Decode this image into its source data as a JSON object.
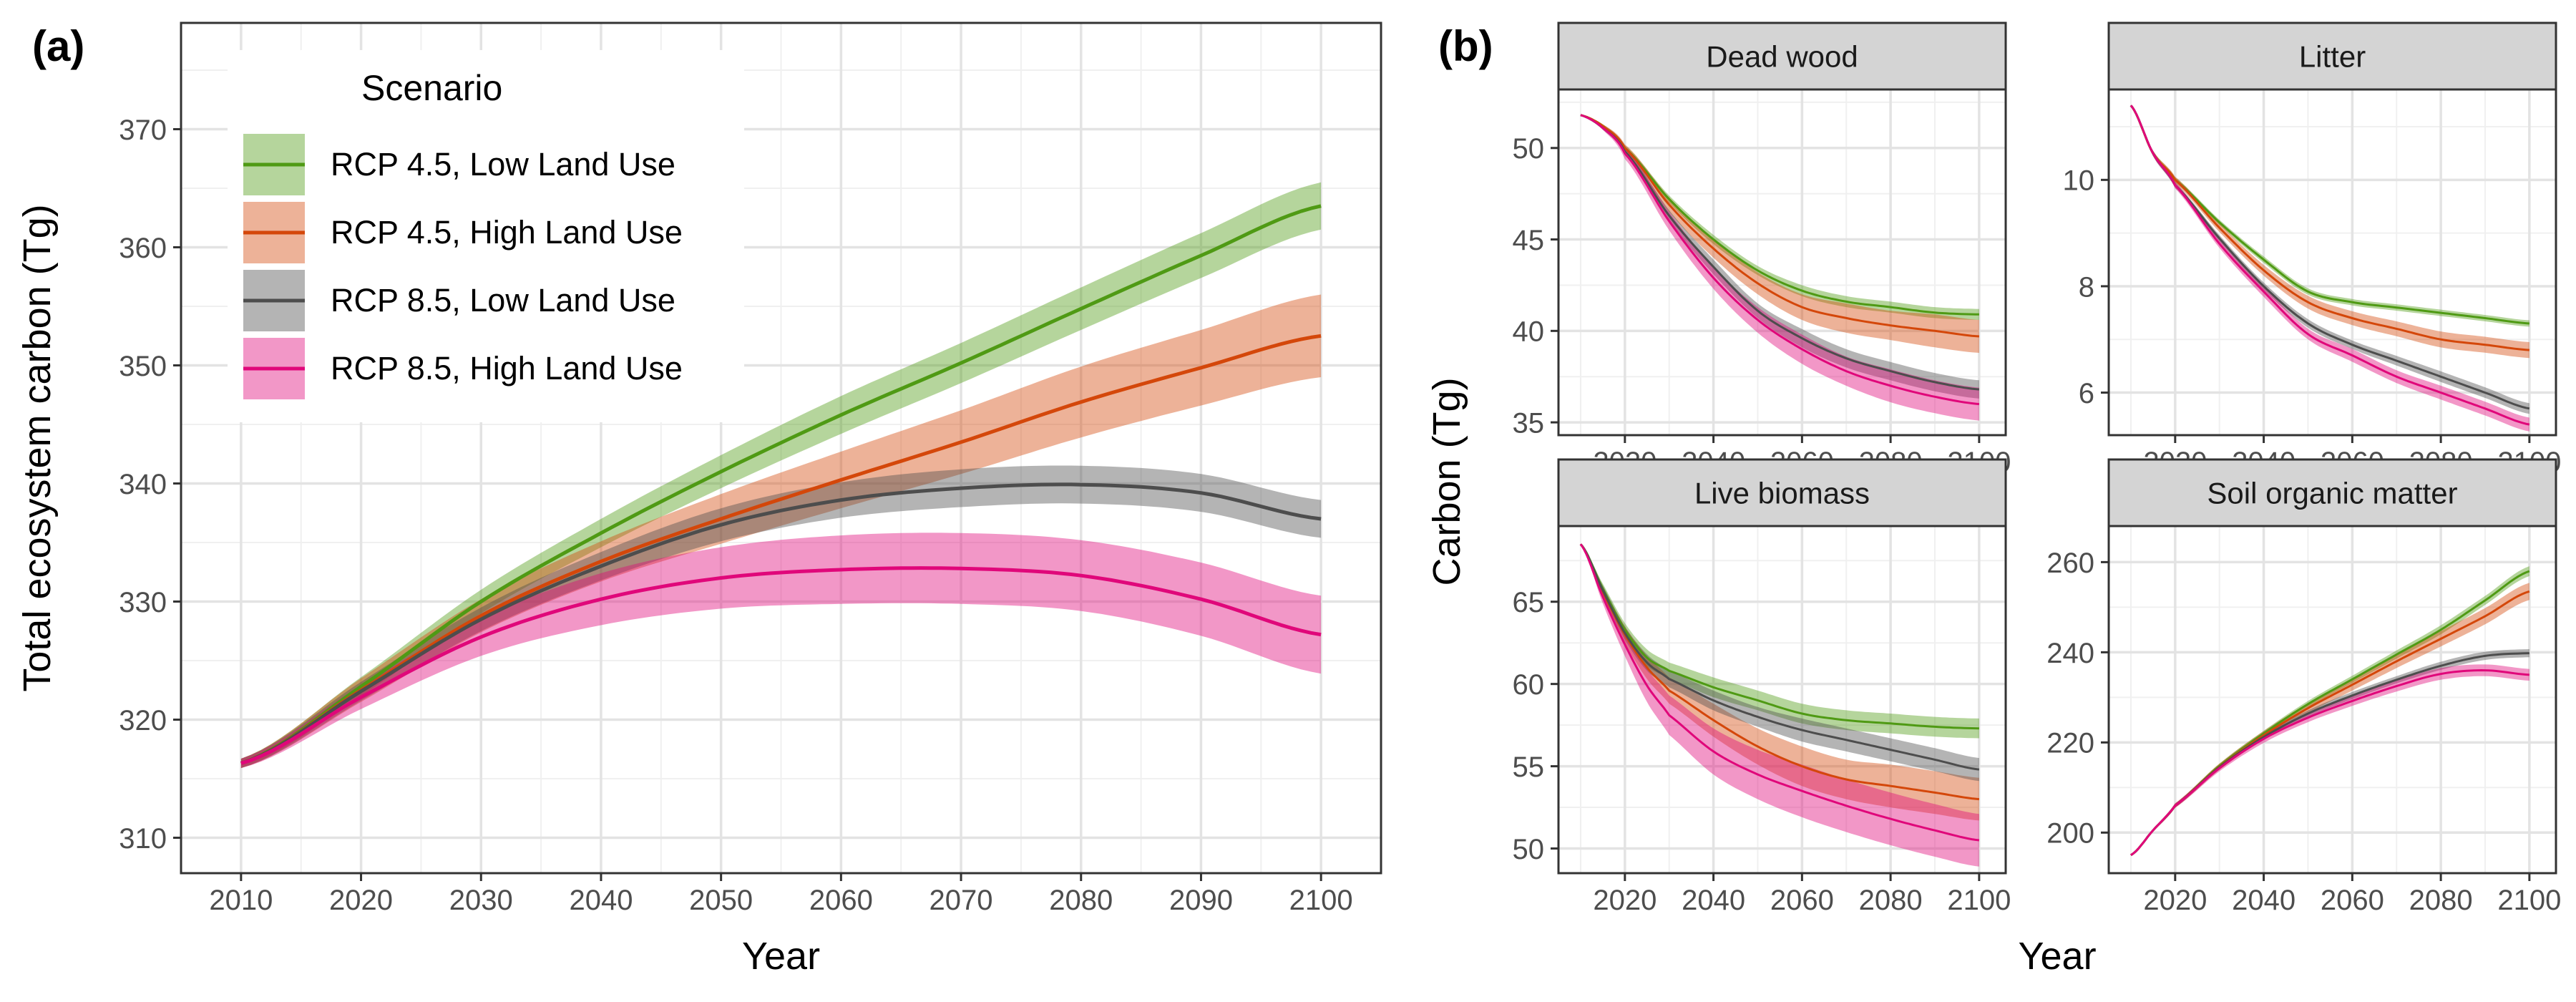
{
  "colors": {
    "rcp45_low": "#4f9a14",
    "rcp45_high": "#d4470a",
    "rcp85_low": "#4d4d4d",
    "rcp85_high": "#e0077a",
    "grid": "#e3e3e3",
    "strip_fill": "#d4d4d4",
    "panel_border": "#333333"
  },
  "chart_data": [
    {
      "type": "line",
      "panel_label": "(a)",
      "xlabel": "Year",
      "ylabel": "Total ecosystem carbon (Tg)",
      "xlim": [
        2005,
        2105
      ],
      "ylim": [
        307,
        379
      ],
      "x_ticks": [
        2010,
        2020,
        2030,
        2040,
        2050,
        2060,
        2070,
        2080,
        2090,
        2100
      ],
      "y_ticks": [
        310,
        320,
        330,
        340,
        350,
        360,
        370
      ],
      "grid": true,
      "bands": "shaded uncertainty ribbon around each series",
      "legend": {
        "title": "Scenario",
        "placement": "top-left",
        "entries": [
          "RCP 4.5, Low Land Use",
          "RCP 4.5, High Land Use",
          "RCP 8.5, Low Land Use",
          "RCP 8.5, High Land Use"
        ]
      },
      "x": [
        2010,
        2020,
        2030,
        2040,
        2050,
        2060,
        2070,
        2080,
        2090,
        2100
      ],
      "series": [
        {
          "name": "RCP 4.5, Low Land Use",
          "color_key": "rcp45_low",
          "values": [
            316.3,
            322.8,
            330.0,
            335.8,
            341.0,
            345.8,
            350.2,
            354.8,
            359.3,
            363.5
          ],
          "band": [
            0.4,
            0.8,
            1.0,
            1.2,
            1.4,
            1.6,
            1.7,
            1.8,
            1.9,
            2.0
          ]
        },
        {
          "name": "RCP 4.5, High Land Use",
          "color_key": "rcp45_high",
          "values": [
            316.3,
            322.5,
            328.8,
            333.4,
            337.0,
            340.3,
            343.5,
            346.9,
            349.8,
            352.5
          ],
          "band": [
            0.4,
            1.0,
            1.4,
            1.7,
            2.1,
            2.4,
            2.7,
            3.0,
            3.2,
            3.5
          ]
        },
        {
          "name": "RCP 8.5, Low Land Use",
          "color_key": "rcp85_low",
          "values": [
            316.3,
            322.4,
            328.5,
            333.0,
            336.5,
            338.6,
            339.6,
            339.9,
            339.2,
            337.0
          ],
          "band": [
            0.4,
            0.8,
            1.0,
            1.2,
            1.4,
            1.5,
            1.6,
            1.6,
            1.6,
            1.6
          ]
        },
        {
          "name": "RCP 8.5, High Land Use",
          "color_key": "rcp85_high",
          "values": [
            316.3,
            321.9,
            327.0,
            330.2,
            332.0,
            332.7,
            332.8,
            332.2,
            330.2,
            327.2
          ],
          "band": [
            0.4,
            1.0,
            1.6,
            2.2,
            2.6,
            2.9,
            3.0,
            3.0,
            3.1,
            3.3
          ]
        }
      ]
    },
    {
      "type": "line",
      "panel_label": "(b)",
      "xlabel": "Year",
      "ylabel": "Carbon (Tg)",
      "x_ticks": [
        2020,
        2040,
        2060,
        2080,
        2100
      ],
      "grid": true,
      "facets": [
        {
          "title": "Dead wood",
          "xlim": [
            2005,
            2106
          ],
          "ylim": [
            34.3,
            53.2
          ],
          "y_ticks": [
            35,
            40,
            45,
            50
          ],
          "x": [
            2010,
            2015,
            2020,
            2030,
            2040,
            2050,
            2060,
            2070,
            2080,
            2090,
            2100
          ],
          "series": [
            {
              "name": "RCP 4.5, Low Land Use",
              "color_key": "rcp45_low",
              "values": [
                51.8,
                51.2,
                50.0,
                47.2,
                45.0,
                43.3,
                42.2,
                41.6,
                41.3,
                41.0,
                40.9
              ],
              "band": [
                0,
                0.1,
                0.15,
                0.2,
                0.25,
                0.25,
                0.3,
                0.3,
                0.3,
                0.3,
                0.3
              ]
            },
            {
              "name": "RCP 4.5, High Land Use",
              "color_key": "rcp45_high",
              "values": [
                51.8,
                51.2,
                50.0,
                46.9,
                44.5,
                42.6,
                41.3,
                40.7,
                40.3,
                40.0,
                39.7
              ],
              "band": [
                0,
                0.1,
                0.2,
                0.4,
                0.5,
                0.6,
                0.7,
                0.8,
                0.8,
                0.9,
                0.9
              ]
            },
            {
              "name": "RCP 8.5, Low Land Use",
              "color_key": "rcp85_low",
              "values": [
                51.8,
                51.1,
                49.8,
                46.3,
                43.5,
                41.1,
                39.6,
                38.5,
                37.8,
                37.2,
                36.8
              ],
              "band": [
                0,
                0.1,
                0.2,
                0.3,
                0.4,
                0.4,
                0.5,
                0.5,
                0.5,
                0.5,
                0.5
              ]
            },
            {
              "name": "RCP 8.5, High Land Use",
              "color_key": "rcp85_high",
              "values": [
                51.8,
                51.1,
                49.7,
                46.0,
                42.9,
                40.6,
                39.0,
                37.8,
                37.0,
                36.4,
                36.0
              ],
              "band": [
                0,
                0.1,
                0.3,
                0.5,
                0.6,
                0.7,
                0.8,
                0.8,
                0.9,
                0.9,
                0.9
              ]
            }
          ]
        },
        {
          "title": "Litter",
          "xlim": [
            2005,
            2106
          ],
          "ylim": [
            5.2,
            11.7
          ],
          "y_ticks": [
            6,
            8,
            10
          ],
          "x": [
            2010,
            2015,
            2020,
            2030,
            2040,
            2050,
            2060,
            2070,
            2080,
            2090,
            2100
          ],
          "series": [
            {
              "name": "RCP 4.5, Low Land Use",
              "color_key": "rcp45_low",
              "values": [
                11.4,
                10.5,
                10.0,
                9.2,
                8.5,
                7.9,
                7.7,
                7.6,
                7.5,
                7.4,
                7.3
              ],
              "band": [
                0,
                0.05,
                0.05,
                0.05,
                0.06,
                0.06,
                0.06,
                0.06,
                0.06,
                0.06,
                0.06
              ]
            },
            {
              "name": "RCP 4.5, High Land Use",
              "color_key": "rcp45_high",
              "values": [
                11.4,
                10.5,
                10.0,
                9.1,
                8.3,
                7.7,
                7.4,
                7.2,
                7.0,
                6.9,
                6.8
              ],
              "band": [
                0,
                0.05,
                0.06,
                0.08,
                0.1,
                0.12,
                0.13,
                0.14,
                0.15,
                0.15,
                0.15
              ]
            },
            {
              "name": "RCP 8.5, Low Land Use",
              "color_key": "rcp85_low",
              "values": [
                11.4,
                10.5,
                9.9,
                8.9,
                8.0,
                7.3,
                6.9,
                6.6,
                6.3,
                6.0,
                5.7
              ],
              "band": [
                0,
                0.05,
                0.05,
                0.06,
                0.07,
                0.08,
                0.08,
                0.09,
                0.1,
                0.1,
                0.1
              ]
            },
            {
              "name": "RCP 8.5, High Land Use",
              "color_key": "rcp85_high",
              "values": [
                11.4,
                10.5,
                9.9,
                8.8,
                7.9,
                7.1,
                6.7,
                6.3,
                6.0,
                5.7,
                5.4
              ],
              "band": [
                0,
                0.05,
                0.06,
                0.08,
                0.1,
                0.1,
                0.12,
                0.12,
                0.13,
                0.13,
                0.13
              ]
            }
          ]
        },
        {
          "title": "Live biomass",
          "xlim": [
            2005,
            2106
          ],
          "ylim": [
            48.5,
            69.6
          ],
          "y_ticks": [
            50,
            55,
            60,
            65
          ],
          "x": [
            2010,
            2015,
            2020,
            2025,
            2030,
            2040,
            2050,
            2060,
            2070,
            2080,
            2090,
            2100
          ],
          "series": [
            {
              "name": "RCP 4.5, Low Land Use",
              "color_key": "rcp45_low",
              "values": [
                68.5,
                65.8,
                63.3,
                61.6,
                60.8,
                59.8,
                59.0,
                58.2,
                57.8,
                57.6,
                57.4,
                57.3
              ],
              "band": [
                0,
                0.3,
                0.4,
                0.5,
                0.5,
                0.6,
                0.6,
                0.6,
                0.6,
                0.6,
                0.6,
                0.6
              ]
            },
            {
              "name": "RCP 4.5, High Land Use",
              "color_key": "rcp45_high",
              "values": [
                68.5,
                65.6,
                63.0,
                61.0,
                59.6,
                57.8,
                56.2,
                55.0,
                54.2,
                53.8,
                53.4,
                53.0
              ],
              "band": [
                0,
                0.3,
                0.5,
                0.7,
                0.8,
                1.0,
                1.1,
                1.2,
                1.2,
                1.3,
                1.3,
                1.3
              ]
            },
            {
              "name": "RCP 8.5, Low Land Use",
              "color_key": "rcp85_low",
              "values": [
                68.5,
                65.7,
                63.1,
                61.3,
                60.3,
                59.0,
                58.0,
                57.2,
                56.6,
                56.0,
                55.4,
                54.8
              ],
              "band": [
                0,
                0.3,
                0.4,
                0.5,
                0.5,
                0.6,
                0.6,
                0.7,
                0.7,
                0.7,
                0.7,
                0.7
              ]
            },
            {
              "name": "RCP 8.5, High Land Use",
              "color_key": "rcp85_high",
              "values": [
                68.5,
                65.3,
                62.4,
                59.9,
                58.1,
                55.9,
                54.5,
                53.5,
                52.6,
                51.8,
                51.1,
                50.5
              ],
              "band": [
                0,
                0.4,
                0.7,
                1.0,
                1.2,
                1.4,
                1.5,
                1.6,
                1.6,
                1.6,
                1.6,
                1.6
              ]
            }
          ]
        },
        {
          "title": "Soil organic matter",
          "xlim": [
            2005,
            2106
          ],
          "ylim": [
            191,
            268
          ],
          "y_ticks": [
            200,
            220,
            240,
            260
          ],
          "x": [
            2010,
            2015,
            2020,
            2030,
            2040,
            2050,
            2060,
            2070,
            2080,
            2090,
            2100
          ],
          "series": [
            {
              "name": "RCP 4.5, Low Land Use",
              "color_key": "rcp45_low",
              "values": [
                195.0,
                200.5,
                206.0,
                214.8,
                222.0,
                228.5,
                234.0,
                239.5,
                245.0,
                251.5,
                258.0
              ],
              "band": [
                0,
                0.3,
                0.4,
                0.5,
                0.6,
                0.7,
                0.8,
                0.9,
                1.0,
                1.0,
                1.1
              ]
            },
            {
              "name": "RCP 4.5, High Land Use",
              "color_key": "rcp45_high",
              "values": [
                195.0,
                200.5,
                206.0,
                214.6,
                221.6,
                227.6,
                232.8,
                238.0,
                243.0,
                248.0,
                253.5
              ],
              "band": [
                0,
                0.3,
                0.5,
                0.7,
                0.9,
                1.1,
                1.3,
                1.5,
                1.7,
                1.8,
                1.9
              ]
            },
            {
              "name": "RCP 8.5, Low Land Use",
              "color_key": "rcp85_low",
              "values": [
                195.0,
                200.5,
                206.0,
                214.5,
                221.2,
                226.4,
                230.4,
                233.9,
                237.0,
                239.2,
                239.8
              ],
              "band": [
                0,
                0.3,
                0.4,
                0.5,
                0.6,
                0.7,
                0.8,
                0.8,
                0.9,
                0.9,
                0.9
              ]
            },
            {
              "name": "RCP 8.5, High Land Use",
              "color_key": "rcp85_high",
              "values": [
                195.0,
                200.5,
                206.0,
                214.3,
                220.8,
                225.5,
                229.2,
                232.5,
                235.2,
                236.0,
                235.0
              ],
              "band": [
                0,
                0.3,
                0.5,
                0.7,
                0.9,
                1.0,
                1.1,
                1.2,
                1.3,
                1.3,
                1.3
              ]
            }
          ]
        }
      ]
    }
  ]
}
